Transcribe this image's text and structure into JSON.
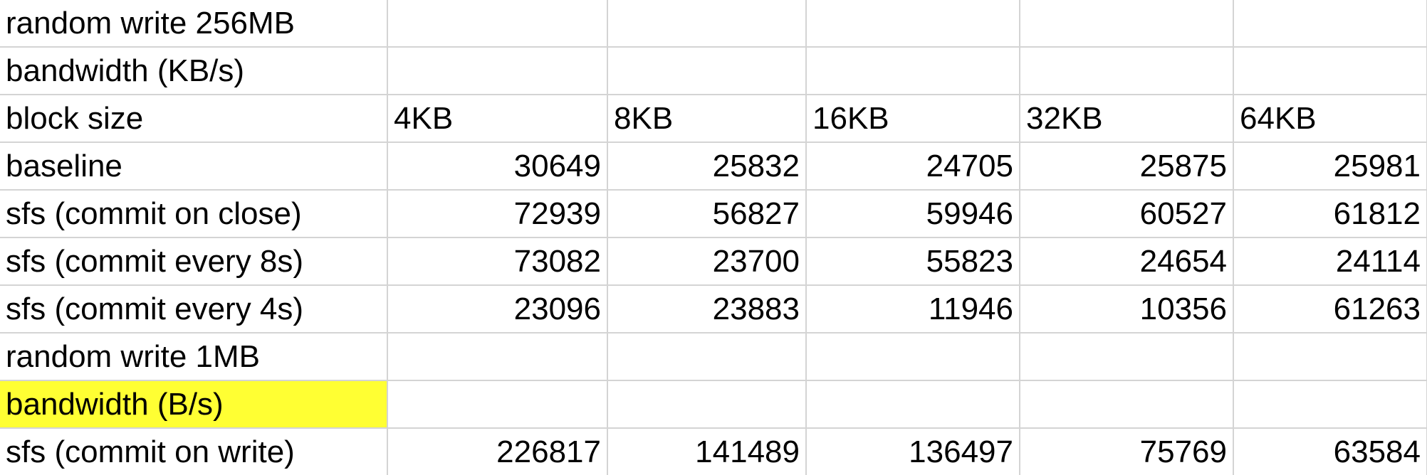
{
  "sheet": {
    "highlight_color": "#ffff33",
    "grid_color": "#d4d4d4",
    "rows": [
      {
        "cells": [
          "random write 256MB",
          "",
          "",
          "",
          "",
          ""
        ]
      },
      {
        "cells": [
          "bandwidth (KB/s)",
          "",
          "",
          "",
          "",
          ""
        ]
      },
      {
        "cells": [
          "block size",
          "4KB",
          "8KB",
          "16KB",
          "32KB",
          "64KB"
        ]
      },
      {
        "cells": [
          "baseline",
          "30649",
          "25832",
          "24705",
          "25875",
          "25981"
        ]
      },
      {
        "cells": [
          "sfs (commit on close)",
          "72939",
          "56827",
          "59946",
          "60527",
          "61812"
        ]
      },
      {
        "cells": [
          "sfs (commit every 8s)",
          "73082",
          "23700",
          "55823",
          "24654",
          "24114"
        ]
      },
      {
        "cells": [
          "sfs (commit every 4s)",
          "23096",
          "23883",
          "11946",
          "10356",
          "61263"
        ]
      },
      {
        "cells": [
          "random write 1MB",
          "",
          "",
          "",
          "",
          ""
        ]
      },
      {
        "cells": [
          "bandwidth (B/s)",
          "",
          "",
          "",
          "",
          ""
        ]
      },
      {
        "cells": [
          "sfs (commit on write)",
          "226817",
          "141489",
          "136497",
          "75769",
          "63584"
        ]
      }
    ]
  }
}
